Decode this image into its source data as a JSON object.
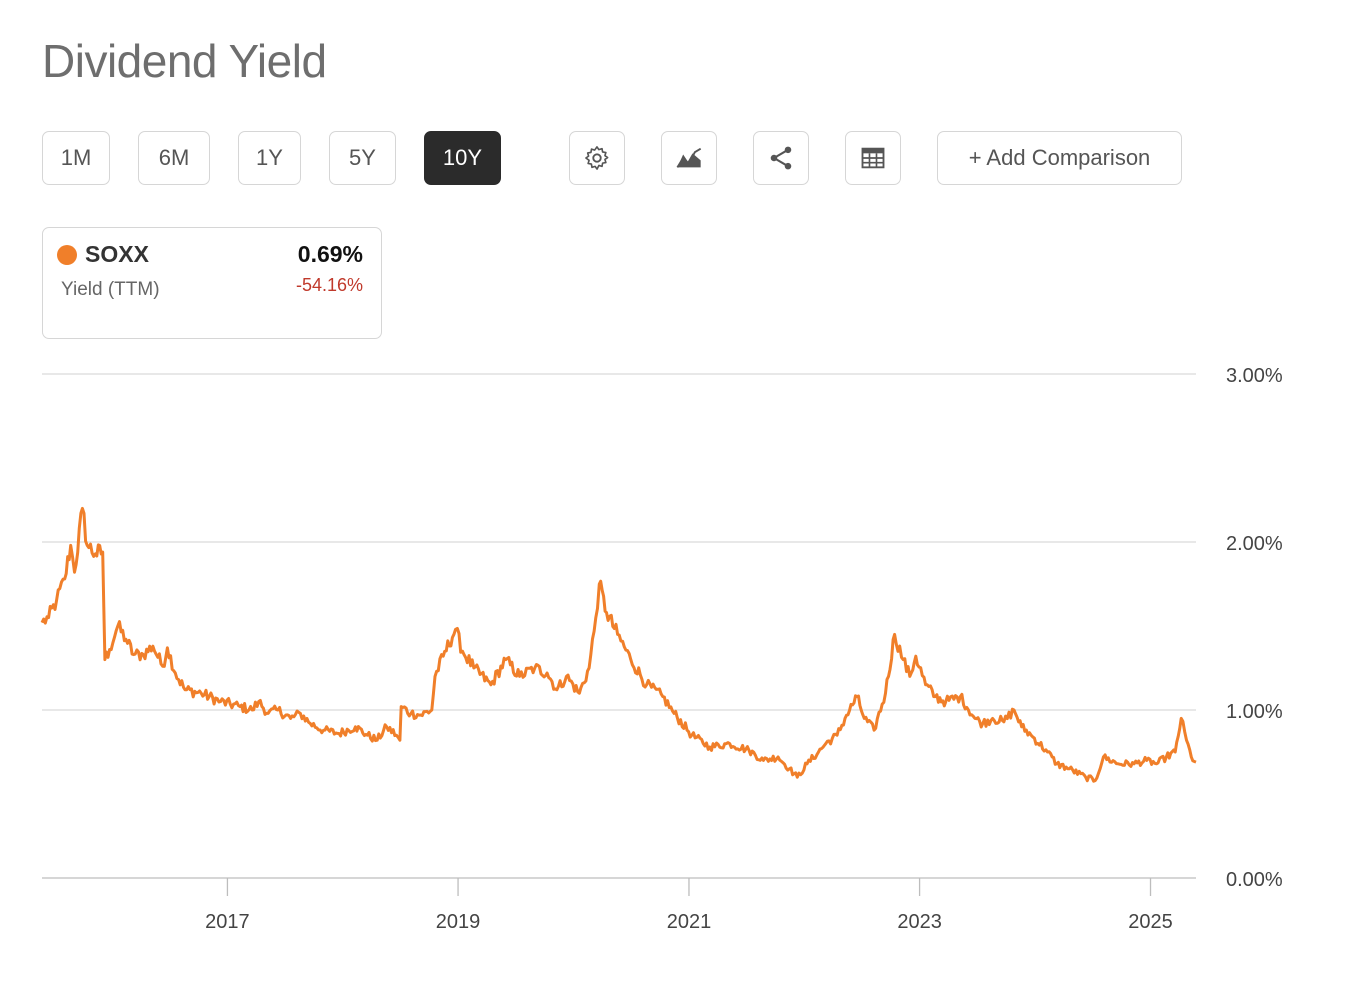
{
  "page": {
    "title": "Dividend Yield"
  },
  "toolbar": {
    "ranges": [
      "1M",
      "6M",
      "1Y",
      "5Y",
      "10Y"
    ],
    "active_range": "10Y",
    "icons": [
      "gear-icon",
      "area-chart-icon",
      "share-icon",
      "table-icon"
    ],
    "add_comparison": "+ Add Comparison"
  },
  "legend": {
    "ticker": "SOXX",
    "metric": "Yield (TTM)",
    "value": "0.69%",
    "change": "-54.16%",
    "color": "#f07f2a",
    "change_color": "#c0392b"
  },
  "chart_data": {
    "type": "line",
    "title": "",
    "xlabel": "",
    "ylabel": "",
    "ylim": [
      0,
      3
    ],
    "yticks": [
      "0.00%",
      "1.00%",
      "2.00%",
      "3.00%"
    ],
    "xticks": [
      "2017",
      "2019",
      "2021",
      "2023",
      "2025"
    ],
    "xlim": [
      "2015-05-25",
      "2025-05-25"
    ],
    "grid": true,
    "series": [
      {
        "name": "SOXX",
        "color": "#f07f2a",
        "points": [
          [
            "2015-05-25",
            1.52
          ],
          [
            "2015-06-15",
            1.55
          ],
          [
            "2015-07-10",
            1.65
          ],
          [
            "2015-08-05",
            1.78
          ],
          [
            "2015-08-24",
            1.98
          ],
          [
            "2015-09-05",
            1.82
          ],
          [
            "2015-09-30",
            2.2
          ],
          [
            "2015-10-15",
            1.98
          ],
          [
            "2015-11-10",
            1.93
          ],
          [
            "2015-12-03",
            1.94
          ],
          [
            "2015-12-10",
            1.3
          ],
          [
            "2015-12-25",
            1.36
          ],
          [
            "2016-01-20",
            1.5
          ],
          [
            "2016-02-15",
            1.42
          ],
          [
            "2016-03-10",
            1.33
          ],
          [
            "2016-04-10",
            1.33
          ],
          [
            "2016-05-10",
            1.38
          ],
          [
            "2016-06-10",
            1.26
          ],
          [
            "2016-06-25",
            1.37
          ],
          [
            "2016-07-20",
            1.22
          ],
          [
            "2016-08-20",
            1.12
          ],
          [
            "2016-10-10",
            1.1
          ],
          [
            "2016-12-10",
            1.05
          ],
          [
            "2017-02-10",
            1.02
          ],
          [
            "2017-03-20",
            1.0
          ],
          [
            "2017-04-10",
            1.05
          ],
          [
            "2017-05-10",
            0.98
          ],
          [
            "2017-06-10",
            1.0
          ],
          [
            "2017-07-20",
            0.95
          ],
          [
            "2017-08-20",
            0.98
          ],
          [
            "2017-09-20",
            0.92
          ],
          [
            "2017-11-01",
            0.88
          ],
          [
            "2017-12-20",
            0.86
          ],
          [
            "2018-02-10",
            0.9
          ],
          [
            "2018-03-20",
            0.85
          ],
          [
            "2018-04-20",
            0.82
          ],
          [
            "2018-05-20",
            0.9
          ],
          [
            "2018-06-20",
            0.85
          ],
          [
            "2018-07-01",
            0.82
          ],
          [
            "2018-07-05",
            1.02
          ],
          [
            "2018-08-05",
            0.98
          ],
          [
            "2018-09-05",
            0.97
          ],
          [
            "2018-10-10",
            1.0
          ],
          [
            "2018-10-20",
            1.2
          ],
          [
            "2018-11-15",
            1.32
          ],
          [
            "2018-12-24",
            1.48
          ],
          [
            "2019-01-15",
            1.35
          ],
          [
            "2019-02-20",
            1.25
          ],
          [
            "2019-04-15",
            1.15
          ],
          [
            "2019-06-01",
            1.3
          ],
          [
            "2019-07-15",
            1.2
          ],
          [
            "2019-09-01",
            1.25
          ],
          [
            "2019-10-10",
            1.22
          ],
          [
            "2019-11-10",
            1.12
          ],
          [
            "2019-12-10",
            1.2
          ],
          [
            "2020-01-20",
            1.1
          ],
          [
            "2020-02-20",
            1.25
          ],
          [
            "2020-03-12",
            1.55
          ],
          [
            "2020-03-23",
            1.75
          ],
          [
            "2020-04-15",
            1.58
          ],
          [
            "2020-05-20",
            1.45
          ],
          [
            "2020-07-01",
            1.3
          ],
          [
            "2020-08-20",
            1.15
          ],
          [
            "2020-10-10",
            1.08
          ],
          [
            "2020-11-15",
            0.98
          ],
          [
            "2021-01-10",
            0.85
          ],
          [
            "2021-03-08",
            0.78
          ],
          [
            "2021-05-10",
            0.8
          ],
          [
            "2021-07-10",
            0.76
          ],
          [
            "2021-08-25",
            0.7
          ],
          [
            "2021-10-10",
            0.72
          ],
          [
            "2021-11-15",
            0.65
          ],
          [
            "2021-12-10",
            0.6
          ],
          [
            "2022-01-10",
            0.68
          ],
          [
            "2022-02-15",
            0.75
          ],
          [
            "2022-03-10",
            0.8
          ],
          [
            "2022-04-15",
            0.85
          ],
          [
            "2022-05-10",
            0.95
          ],
          [
            "2022-06-17",
            1.08
          ],
          [
            "2022-07-10",
            0.95
          ],
          [
            "2022-08-10",
            0.88
          ],
          [
            "2022-09-15",
            1.1
          ],
          [
            "2022-10-14",
            1.45
          ],
          [
            "2022-11-10",
            1.3
          ],
          [
            "2022-12-01",
            1.2
          ],
          [
            "2022-12-20",
            1.32
          ],
          [
            "2023-01-20",
            1.15
          ],
          [
            "2023-02-20",
            1.08
          ],
          [
            "2023-03-25",
            1.05
          ],
          [
            "2023-05-10",
            1.08
          ],
          [
            "2023-06-25",
            0.95
          ],
          [
            "2023-07-20",
            0.92
          ],
          [
            "2023-08-20",
            0.95
          ],
          [
            "2023-09-25",
            0.93
          ],
          [
            "2023-10-27",
            1.0
          ],
          [
            "2023-11-20",
            0.9
          ],
          [
            "2023-12-20",
            0.85
          ],
          [
            "2024-02-10",
            0.75
          ],
          [
            "2024-03-10",
            0.68
          ],
          [
            "2024-04-19",
            0.65
          ],
          [
            "2024-06-10",
            0.6
          ],
          [
            "2024-07-10",
            0.58
          ],
          [
            "2024-08-05",
            0.72
          ],
          [
            "2024-09-20",
            0.68
          ],
          [
            "2024-11-10",
            0.68
          ],
          [
            "2024-12-20",
            0.7
          ],
          [
            "2025-01-20",
            0.68
          ],
          [
            "2025-02-20",
            0.72
          ],
          [
            "2025-03-20",
            0.75
          ],
          [
            "2025-04-08",
            0.95
          ],
          [
            "2025-04-25",
            0.82
          ],
          [
            "2025-05-10",
            0.72
          ],
          [
            "2025-05-25",
            0.69
          ]
        ]
      }
    ]
  }
}
